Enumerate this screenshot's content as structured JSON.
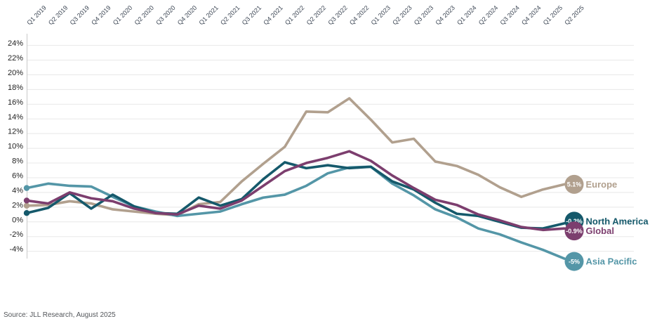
{
  "chart_data": {
    "type": "line",
    "title": "",
    "x_categories": [
      "Q1 2019",
      "Q2 2019",
      "Q3 2019",
      "Q4 2019",
      "Q1 2020",
      "Q2 2020",
      "Q3 2020",
      "Q4 2020",
      "Q1 2021",
      "Q2 2021",
      "Q3 2021",
      "Q4 2021",
      "Q1 2022",
      "Q2 2022",
      "Q3 2022",
      "Q4 2022",
      "Q1 2023",
      "Q2 2023",
      "Q3 2023",
      "Q4 2023",
      "Q1 2024",
      "Q2 2024",
      "Q3 2024",
      "Q4 2024",
      "Q1 2025",
      "Q2 2025"
    ],
    "y_axis": {
      "ticks": [
        "24%",
        "22%",
        "20%",
        "18%",
        "16%",
        "14%",
        "12%",
        "10%",
        "8%",
        "6%",
        "4%",
        "2%",
        "0%",
        "-2%",
        "-4%"
      ],
      "max": 24,
      "min": -4,
      "step": 2,
      "unit": "%"
    },
    "grid": "horizontal",
    "legend_position": "end-of-line-right",
    "series": [
      {
        "name": "Europe",
        "color": "#b1a08e",
        "end_badge": "5.1%",
        "values": [
          2.2,
          2.3,
          2.8,
          2.5,
          1.7,
          1.4,
          1.1,
          0.9,
          2.4,
          2.7,
          5.5,
          7.9,
          10.2,
          15.0,
          14.9,
          16.8,
          13.9,
          10.8,
          11.3,
          8.2,
          7.6,
          6.4,
          4.7,
          3.4,
          4.4,
          5.1
        ]
      },
      {
        "name": "Asia Pacific",
        "color": "#5496a7",
        "end_badge": "-5%",
        "values": [
          4.6,
          5.2,
          4.9,
          4.8,
          3.4,
          2.1,
          1.4,
          0.8,
          1.1,
          1.4,
          2.4,
          3.3,
          3.7,
          4.9,
          6.6,
          7.4,
          7.5,
          5.2,
          3.6,
          1.7,
          0.6,
          -0.9,
          -1.7,
          -2.8,
          -3.8,
          -5.0
        ]
      },
      {
        "name": "North America",
        "color": "#15596b",
        "end_badge": "-0.2%",
        "values": [
          1.2,
          1.9,
          3.9,
          1.8,
          3.7,
          2.1,
          1.2,
          1.1,
          3.3,
          2.2,
          3.1,
          5.8,
          8.1,
          7.3,
          7.7,
          7.3,
          7.5,
          5.5,
          4.4,
          2.6,
          1.1,
          0.8,
          0.0,
          -0.8,
          -0.9,
          -0.2
        ]
      },
      {
        "name": "Global",
        "color": "#7c3e6e",
        "end_badge": "-0.9%",
        "values": [
          2.9,
          2.5,
          4.0,
          3.2,
          2.8,
          1.8,
          1.2,
          1.0,
          2.2,
          1.8,
          2.9,
          4.9,
          6.9,
          8.0,
          8.7,
          9.6,
          8.3,
          6.3,
          4.6,
          3.0,
          2.3,
          1.0,
          0.2,
          -0.7,
          -1.1,
          -0.9
        ]
      }
    ],
    "colors": {
      "gridline": "#e8e8e8",
      "axis_line": "#c9c9c9",
      "x_tick_label": "#3c4654",
      "y_tick_label": "#1f1f1f",
      "badge_text": "#ffffff"
    }
  },
  "footer": {
    "source_text": "Source: JLL Research, August 2025"
  }
}
